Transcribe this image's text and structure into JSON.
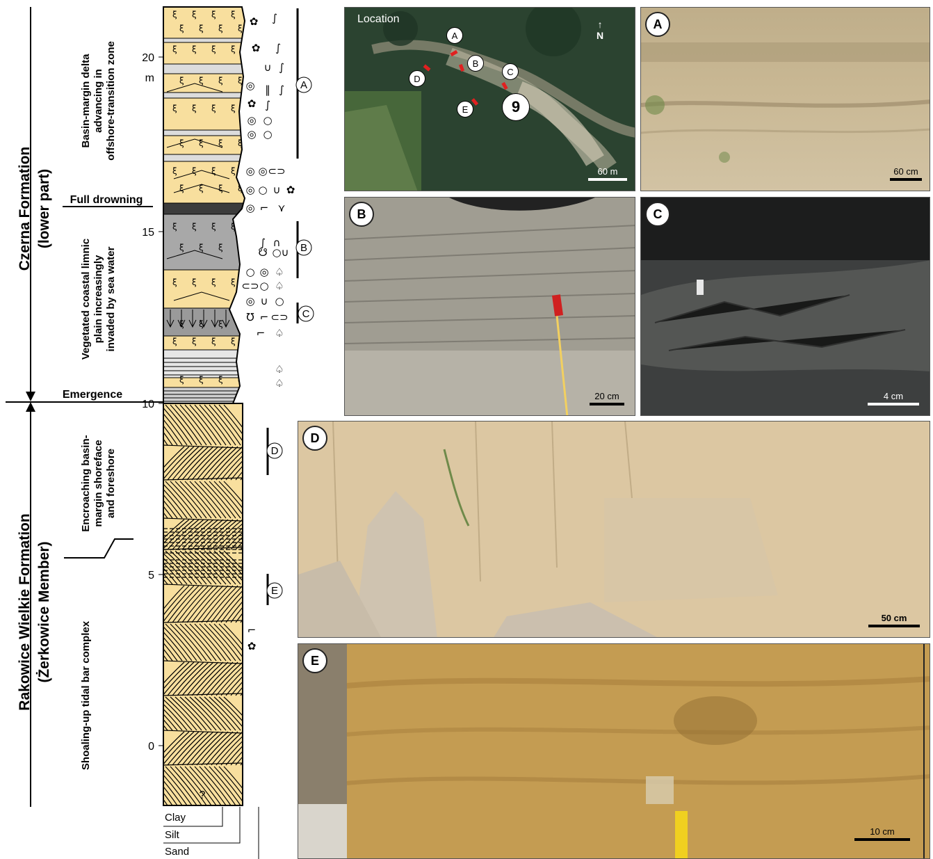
{
  "formations": {
    "czerna": "Czerna Formation",
    "czerna_sub": "(lower part)",
    "rakowice": "Rakowice Wielkie Formation",
    "rakowice_sub": "(Żerkowice Member)"
  },
  "facies": {
    "delta_1": "Basin-margin delta",
    "delta_2": "advancing in",
    "delta_3": "offshore-transition zone",
    "limnic_1": "Vegetated coastal limnic",
    "limnic_2": "plain increasingly",
    "limnic_3": "invaded by sea water",
    "shoreface_1": "Encroaching basin-",
    "shoreface_2": "margin shoreface",
    "shoreface_3": "and foreshore",
    "tidal": "Shoaling-up tidal bar  complex"
  },
  "events": {
    "drowning": "Full drowning",
    "emergence": "Emergence"
  },
  "scale": {
    "ticks": [
      "20",
      "15",
      "10",
      "5",
      "0"
    ],
    "unit": "m",
    "unknown": "?"
  },
  "grain_sizes": [
    "Clay",
    "Silt",
    "Sand"
  ],
  "photos": {
    "location": {
      "title": "Location",
      "scale": "60 m",
      "site": "9",
      "points": [
        "A",
        "B",
        "C",
        "D",
        "E"
      ],
      "north": "N"
    },
    "A": {
      "label": "A",
      "scale": "60 cm"
    },
    "B": {
      "label": "B",
      "scale": "20 cm"
    },
    "C": {
      "label": "C",
      "scale": "4 cm"
    },
    "D": {
      "label": "D",
      "scale": "50 cm"
    },
    "E": {
      "label": "E",
      "scale": "10 cm"
    }
  },
  "colors": {
    "sand": "#f8df9e",
    "clay": "#9a9a9a",
    "silt": "#dcdcdc",
    "photo_marker": "#e02020"
  }
}
